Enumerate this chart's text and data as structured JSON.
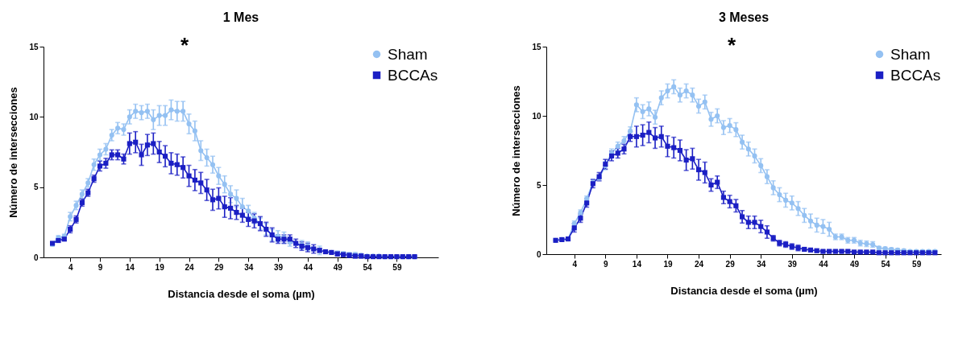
{
  "chart_data": [
    {
      "type": "line",
      "title": "1 Mes",
      "xlabel": "Distancia desde el soma (µm)",
      "ylabel": "Número de intersecciones",
      "x": [
        1,
        2,
        3,
        4,
        5,
        6,
        7,
        8,
        9,
        10,
        11,
        12,
        13,
        14,
        15,
        16,
        17,
        18,
        19,
        20,
        21,
        22,
        23,
        24,
        25,
        26,
        27,
        28,
        29,
        30,
        31,
        32,
        33,
        34,
        35,
        36,
        37,
        38,
        39,
        40,
        41,
        42,
        43,
        44,
        45,
        46,
        47,
        48,
        49,
        50,
        51,
        52,
        53,
        54,
        55,
        56,
        57,
        58,
        59,
        60,
        61,
        62
      ],
      "xlim": [
        -0.5,
        66
      ],
      "xticks": [
        4,
        9,
        14,
        19,
        24,
        29,
        34,
        39,
        44,
        49,
        54,
        59
      ],
      "ylim": [
        0,
        15
      ],
      "yticks": [
        0,
        5,
        10,
        15
      ],
      "grid": false,
      "legend": "top right",
      "line_style": "solid",
      "annotations": [
        "*"
      ],
      "series": [
        {
          "name": "Sham",
          "color": "#94c1f2",
          "marker": "circle",
          "values": [
            0.95,
            1.4,
            1.5,
            2.9,
            3.7,
            4.5,
            5.3,
            6.6,
            7.3,
            7.7,
            8.7,
            9.2,
            9.1,
            10.0,
            10.4,
            10.3,
            10.4,
            9.8,
            10.1,
            10.1,
            10.5,
            10.4,
            10.4,
            9.5,
            9.0,
            7.6,
            7.1,
            6.6,
            5.8,
            5.2,
            4.5,
            4.2,
            3.6,
            3.3,
            2.8,
            2.4,
            2.0,
            1.6,
            1.5,
            1.4,
            1.1,
            1.0,
            0.9,
            0.8,
            0.6,
            0.5,
            0.4,
            0.35,
            0.3,
            0.25,
            0.2,
            0.2,
            0.15,
            0.1,
            0.1,
            0.1,
            0.05,
            0.05,
            0.05,
            0.05,
            0.05,
            0.05
          ],
          "errors": [
            0.15,
            0.15,
            0.15,
            0.3,
            0.3,
            0.3,
            0.3,
            0.4,
            0.4,
            0.4,
            0.4,
            0.4,
            0.4,
            0.5,
            0.5,
            0.5,
            0.5,
            0.7,
            0.7,
            0.7,
            0.7,
            0.7,
            0.7,
            0.7,
            0.7,
            0.7,
            0.6,
            0.6,
            0.6,
            0.6,
            0.6,
            0.6,
            0.6,
            0.4,
            0.4,
            0.4,
            0.4,
            0.4,
            0.4,
            0.4,
            0.3,
            null,
            0.3,
            0.3,
            null,
            0.3,
            null,
            null,
            0.15,
            0.15,
            0.15,
            0.15,
            0.05,
            0.05,
            0.05,
            0.05,
            0.05,
            0.05,
            0.05,
            0.05,
            0.05,
            0.05
          ]
        },
        {
          "name": "BCCAs",
          "color": "#1b1fc4",
          "marker": "square",
          "values": [
            1.0,
            1.2,
            1.3,
            2.0,
            2.7,
            3.9,
            4.6,
            5.6,
            6.5,
            6.7,
            7.3,
            7.3,
            7.0,
            8.1,
            8.2,
            7.3,
            8.0,
            8.1,
            7.5,
            7.2,
            6.7,
            6.6,
            6.4,
            5.8,
            5.5,
            5.3,
            4.8,
            4.1,
            4.2,
            3.6,
            3.5,
            3.2,
            3.0,
            2.7,
            2.6,
            2.4,
            2.0,
            1.6,
            1.3,
            1.3,
            1.3,
            1.0,
            0.8,
            0.7,
            0.6,
            0.5,
            0.4,
            0.35,
            0.25,
            0.2,
            0.15,
            0.1,
            0.1,
            0.05,
            0.05,
            0.05,
            0.05,
            0.05,
            0.05,
            0.05,
            0.05,
            0.05
          ],
          "errors": [
            0.1,
            0.1,
            0.1,
            0.25,
            0.25,
            0.25,
            0.25,
            0.25,
            0.35,
            0.35,
            0.35,
            0.35,
            0.35,
            0.75,
            0.75,
            0.75,
            0.75,
            0.75,
            0.75,
            0.75,
            0.75,
            0.75,
            0.75,
            0.75,
            0.75,
            0.75,
            0.75,
            0.75,
            0.75,
            0.75,
            0.75,
            0.5,
            0.5,
            0.5,
            0.5,
            0.5,
            0.5,
            0.5,
            0.3,
            0.3,
            0.3,
            0.3,
            0.3,
            0.3,
            0.3,
            0.15,
            null,
            null,
            0.15,
            0.15,
            0.15,
            0.15,
            0.15,
            0.05,
            0.05,
            0.05,
            0.05,
            0.05,
            0.05,
            0.05,
            0.05,
            0.05
          ]
        }
      ]
    },
    {
      "type": "line",
      "title": "3 Meses",
      "xlabel": "Distancia desde el soma (µm)",
      "ylabel": "Número de intersecciones",
      "x": [
        1,
        2,
        3,
        4,
        5,
        6,
        7,
        8,
        9,
        10,
        11,
        12,
        13,
        14,
        15,
        16,
        17,
        18,
        19,
        20,
        21,
        22,
        23,
        24,
        25,
        26,
        27,
        28,
        29,
        30,
        31,
        32,
        33,
        34,
        35,
        36,
        37,
        38,
        39,
        40,
        41,
        42,
        43,
        44,
        45,
        46,
        47,
        48,
        49,
        50,
        51,
        52,
        53,
        54,
        55,
        56,
        57,
        58,
        59,
        60,
        61,
        62
      ],
      "xlim": [
        -0.5,
        63
      ],
      "xticks": [
        4,
        9,
        14,
        19,
        24,
        29,
        34,
        39,
        44,
        49,
        54,
        59
      ],
      "ylim": [
        0,
        15
      ],
      "yticks": [
        0,
        5,
        10,
        15
      ],
      "grid": false,
      "legend": "top right",
      "line_style": "solid",
      "annotations": [
        "*"
      ],
      "series": [
        {
          "name": "Sham",
          "color": "#94c1f2",
          "marker": "circle",
          "values": [
            1.0,
            1.05,
            1.1,
            2.2,
            3.0,
            4.0,
            5.2,
            5.5,
            6.4,
            7.3,
            7.8,
            8.2,
            8.9,
            10.8,
            10.3,
            10.5,
            9.9,
            11.3,
            11.8,
            12.1,
            11.5,
            11.8,
            11.5,
            10.7,
            11.0,
            9.75,
            10.0,
            9.15,
            9.3,
            9.0,
            8.1,
            7.6,
            7.1,
            6.4,
            5.6,
            4.8,
            4.3,
            3.9,
            3.7,
            3.3,
            2.8,
            2.4,
            2.1,
            2.0,
            1.8,
            1.25,
            1.25,
            1.0,
            1.0,
            0.8,
            0.75,
            0.7,
            0.45,
            0.4,
            0.35,
            0.3,
            0.25,
            0.2,
            0.2,
            0.2,
            0.2,
            0.2
          ],
          "errors": [
            null,
            null,
            null,
            0.2,
            0.2,
            0.2,
            0.2,
            null,
            0.3,
            0.3,
            0.3,
            0.3,
            0.3,
            0.5,
            0.5,
            0.5,
            0.5,
            0.5,
            0.5,
            0.5,
            0.5,
            0.5,
            0.5,
            0.5,
            0.5,
            0.5,
            0.5,
            0.5,
            0.5,
            0.5,
            0.5,
            0.5,
            0.5,
            0.5,
            0.5,
            0.5,
            0.5,
            0.5,
            0.5,
            0.5,
            0.5,
            0.5,
            0.5,
            0.5,
            0.5,
            0.2,
            0.2,
            0.2,
            0.2,
            0.2,
            0.2,
            0.2,
            0.1,
            0.1,
            0.1,
            0.1,
            0.1,
            0.1,
            0.1,
            0.1,
            0.1,
            0.1
          ]
        },
        {
          "name": "BCCAs",
          "color": "#1b1fc4",
          "marker": "square",
          "values": [
            1.0,
            1.05,
            1.1,
            1.9,
            2.6,
            3.7,
            5.1,
            5.6,
            6.5,
            7.1,
            7.3,
            7.6,
            8.5,
            8.5,
            8.6,
            8.8,
            8.4,
            8.5,
            7.8,
            7.7,
            7.5,
            6.8,
            6.9,
            6.1,
            5.9,
            5.0,
            5.2,
            4.1,
            3.8,
            3.5,
            2.7,
            2.3,
            2.3,
            2.0,
            1.6,
            1.15,
            0.8,
            0.7,
            0.55,
            0.45,
            0.35,
            0.3,
            0.25,
            0.2,
            0.2,
            0.2,
            0.2,
            0.2,
            0.15,
            0.15,
            0.15,
            0.15,
            0.1,
            0.1,
            0.1,
            0.1,
            0.1,
            0.1,
            0.1,
            0.1,
            0.1,
            0.1
          ],
          "errors": [
            null,
            0.1,
            0.1,
            0.3,
            0.3,
            0.3,
            0.3,
            0.3,
            0.35,
            0.35,
            0.35,
            0.35,
            0.35,
            0.75,
            0.75,
            0.75,
            0.75,
            0.75,
            0.75,
            0.75,
            0.75,
            0.75,
            0.75,
            0.75,
            0.75,
            0.45,
            0.45,
            0.45,
            0.45,
            0.45,
            0.45,
            0.45,
            0.45,
            0.45,
            0.45,
            0.2,
            0.2,
            0.2,
            0.2,
            0.2,
            0.1,
            0.1,
            0.1,
            0.1,
            0.1,
            0.1,
            0.1,
            0.1,
            0.1,
            0.1,
            0.1,
            0.1,
            0.1,
            0.1,
            0.1,
            0.1,
            0.1,
            0.1,
            0.1,
            0.1,
            0.1,
            0.1
          ]
        }
      ]
    }
  ]
}
